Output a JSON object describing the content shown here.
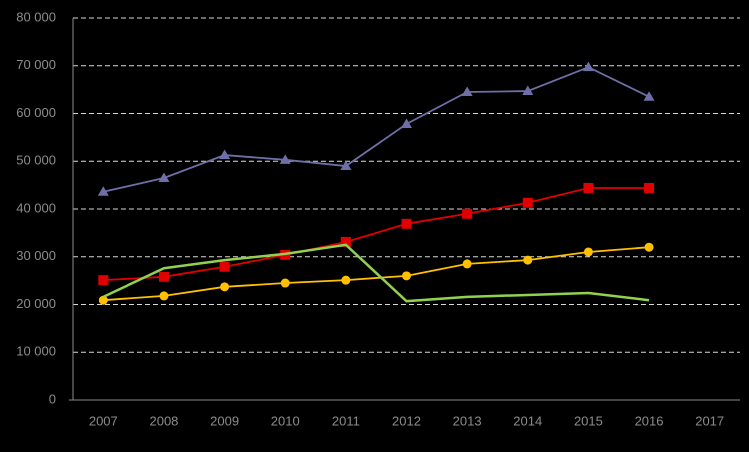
{
  "chart_data": {
    "type": "line",
    "categories": [
      "2007",
      "2008",
      "2009",
      "2010",
      "2011",
      "2012",
      "2013",
      "2014",
      "2015",
      "2016",
      "2017"
    ],
    "series": [
      {
        "color": "#6f6fa8",
        "marker": "triangle",
        "values": [
          43600,
          46500,
          51300,
          50300,
          49000,
          57800,
          64500,
          64700,
          69700,
          63500,
          null
        ]
      },
      {
        "color": "#e00000",
        "marker": "square",
        "values": [
          25100,
          25800,
          27900,
          30400,
          33100,
          36900,
          39000,
          41300,
          44400,
          44400,
          null
        ]
      },
      {
        "color": "#ffc000",
        "marker": "circle",
        "values": [
          20900,
          21800,
          23700,
          24500,
          25100,
          26000,
          28500,
          29300,
          31000,
          32000,
          null
        ]
      },
      {
        "color": "#92d050",
        "marker": "none",
        "values": [
          21600,
          27600,
          29300,
          30600,
          32500,
          20700,
          21600,
          22000,
          22400,
          20900,
          null
        ]
      }
    ],
    "ylim": [
      0,
      80000
    ],
    "yticks": [
      0,
      {
        "value": 10000,
        "label": "10 000"
      },
      {
        "value": 20000,
        "label": "20 000"
      },
      {
        "value": 30000,
        "label": "30 000"
      },
      {
        "value": 40000,
        "label": "40 000"
      },
      {
        "value": 50000,
        "label": "50 000"
      },
      {
        "value": 60000,
        "label": "60 000"
      },
      {
        "value": 70000,
        "label": "70 000"
      },
      {
        "value": 80000,
        "label": "80 000"
      }
    ],
    "grid": true
  }
}
